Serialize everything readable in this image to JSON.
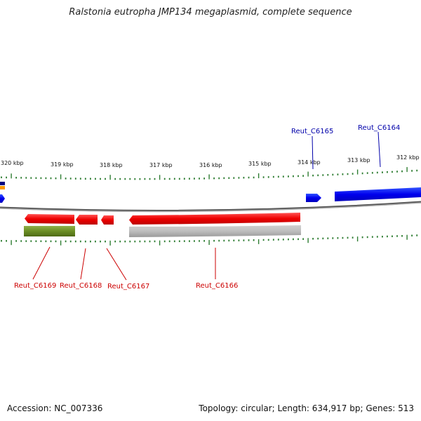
{
  "title": "Ralstonia eutropha JMP134 megaplasmid, complete sequence",
  "footer": {
    "accession": "Accession: NC_007336",
    "summary": "Topology: circular; Length: 634,917 bp; Genes: 513"
  },
  "scale_labels": [
    "320 kbp",
    "319 kbp",
    "318 kbp",
    "317 kbp",
    "316 kbp",
    "315 kbp",
    "314 kbp",
    "313 kbp",
    "312 kbp"
  ],
  "genes": [
    {
      "label": "Reut_C6169",
      "color": "#cc0000"
    },
    {
      "label": "Reut_C6168",
      "color": "#cc0000"
    },
    {
      "label": "Reut_C6167",
      "color": "#cc0000"
    },
    {
      "label": "Reut_C6166",
      "color": "#cc0000"
    },
    {
      "label": "Reut_C6165",
      "color": "#0000aa"
    },
    {
      "label": "Reut_C6164",
      "color": "#0000aa"
    }
  ],
  "colors": {
    "forward_gene": "#0000ee",
    "reverse_gene": "#ee0000",
    "rna_green": "#6b8e23",
    "backbone": "#808080",
    "tick": "#2e7d32"
  }
}
